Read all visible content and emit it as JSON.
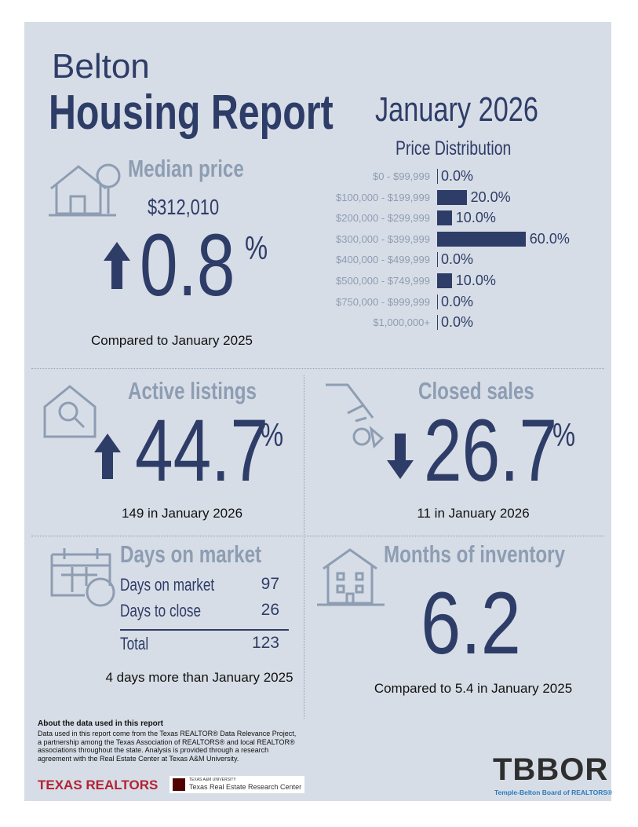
{
  "header": {
    "city": "Belton",
    "title": "Housing Report",
    "period": "January 2026"
  },
  "price_distribution": {
    "title": "Price Distribution",
    "rows": [
      {
        "label": "$0 - $99,999",
        "value": 0,
        "value_label": "0.0%"
      },
      {
        "label": "$100,000 - $199,999",
        "value": 20,
        "value_label": "20.0%"
      },
      {
        "label": "$200,000 - $299,999",
        "value": 10,
        "value_label": "10.0%"
      },
      {
        "label": "$300,000 - $399,999",
        "value": 60,
        "value_label": "60.0%"
      },
      {
        "label": "$400,000 - $499,999",
        "value": 0,
        "value_label": "0.0%"
      },
      {
        "label": "$500,000 - $749,999",
        "value": 10,
        "value_label": "10.0%"
      },
      {
        "label": "$750,000 - $999,999",
        "value": 0,
        "value_label": "0.0%"
      },
      {
        "label": "$1,000,000+",
        "value": 0,
        "value_label": "0.0%"
      }
    ]
  },
  "median_price": {
    "title": "Median price",
    "price": "$312,010",
    "change": "0.8",
    "unit": "%",
    "note": "Compared to January 2025"
  },
  "active_listings": {
    "title": "Active listings",
    "change": "44.7",
    "unit": "%",
    "note": "149 in January 2026"
  },
  "closed_sales": {
    "title": "Closed sales",
    "change": "26.7",
    "unit": "%",
    "note": "11 in January 2026"
  },
  "days_on_market": {
    "title": "Days on market",
    "rows": [
      [
        "Days on market",
        "97"
      ],
      [
        "Days to close",
        "26"
      ]
    ],
    "total": [
      "Total",
      "123"
    ],
    "note": "4 days more than January 2025"
  },
  "months_of_inventory": {
    "title": "Months of inventory",
    "value": "6.2",
    "note": "Compared to 5.4 in January 2025"
  },
  "footer": {
    "about_title": "About the data used in this report",
    "about_text": "Data used in this report come from the Texas REALTOR® Data Relevance Project, a partnership among the Texas Association of REALTORS® and local REALTOR® associations throughout the state. Analysis is provided through a research agreement with the Real Estate Center at Texas A&M University.",
    "texas_realtors": "TEXAS REALTORS",
    "tamu": "TEXAS A&M UNIVERSITY",
    "recenter": "Texas Real Estate Research Center",
    "tbbor": "TBBOR",
    "tbbor_name": "Temple-Belton Board of REALTORS®"
  }
}
